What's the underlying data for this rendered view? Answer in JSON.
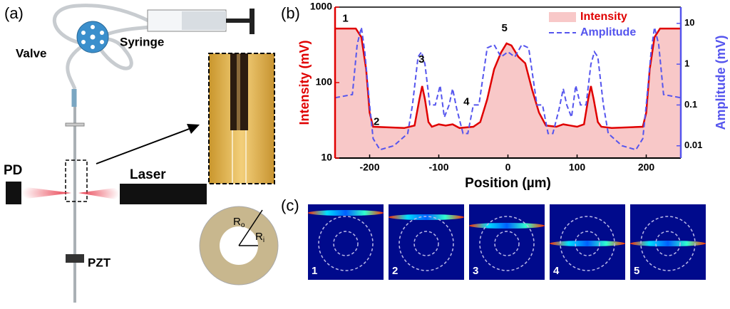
{
  "panel_a": {
    "label": "(a)",
    "valve": "Valve",
    "syringe": "Syringe",
    "pd": "PD",
    "laser": "Laser",
    "pzt": "PZT",
    "radius_labels": [
      {
        "main": "R",
        "sub": "o"
      },
      {
        "main": "R",
        "sub": "i"
      }
    ]
  },
  "chart_data": {
    "type": "line",
    "panel_label": "(b)",
    "xlabel": "Position (µm)",
    "ylabel": "Intensity (mV)",
    "y2label": "Amplitude (mV)",
    "xlim": [
      -250,
      250
    ],
    "xticks": [
      -200,
      -100,
      0,
      100,
      200
    ],
    "ylim": [
      10,
      1000
    ],
    "yticks": [
      10,
      100,
      1000
    ],
    "y2lim": [
      0.005,
      25
    ],
    "y2ticks": [
      0.01,
      0.1,
      1,
      10
    ],
    "yscale": "log",
    "y2scale": "log",
    "legend": "upper right",
    "series": [
      {
        "name": "Intensity",
        "color": "#e00000",
        "fill": "#f8c8c8",
        "style": "area",
        "x": [
          -250,
          -220,
          -212,
          -205,
          -200,
          -195,
          -150,
          -135,
          -128,
          -124,
          -120,
          -115,
          -110,
          -100,
          -90,
          -80,
          -70,
          -50,
          -40,
          -30,
          -20,
          -10,
          -2,
          5,
          15,
          25,
          35,
          45,
          55,
          70,
          80,
          90,
          100,
          110,
          116,
          120,
          124,
          130,
          135,
          150,
          195,
          200,
          205,
          212,
          220,
          250
        ],
        "values": [
          520,
          520,
          400,
          150,
          40,
          26,
          25,
          27,
          60,
          90,
          60,
          30,
          26,
          28,
          27,
          28,
          25,
          26,
          30,
          60,
          150,
          250,
          330,
          310,
          220,
          180,
          80,
          40,
          27,
          26,
          28,
          27,
          26,
          28,
          60,
          90,
          60,
          30,
          26,
          25,
          26,
          40,
          150,
          400,
          520,
          520
        ]
      },
      {
        "name": "Amplitude",
        "color": "#5555ee",
        "style": "dashed",
        "axis": "y2",
        "x": [
          -250,
          -225,
          -218,
          -212,
          -207,
          -200,
          -195,
          -185,
          -165,
          -145,
          -138,
          -130,
          -125,
          -120,
          -113,
          -105,
          -98,
          -92,
          -85,
          -80,
          -74,
          -65,
          -58,
          -50,
          -42,
          -36,
          -30,
          -20,
          -10,
          0,
          10,
          20,
          30,
          36,
          42,
          50,
          58,
          65,
          74,
          80,
          85,
          92,
          98,
          105,
          113,
          120,
          125,
          130,
          138,
          145,
          165,
          185,
          195,
          200,
          207,
          212,
          218,
          225,
          250
        ],
        "values": [
          0.15,
          0.18,
          3,
          8,
          2,
          0.1,
          0.015,
          0.008,
          0.01,
          0.02,
          0.1,
          1.5,
          2,
          1,
          0.1,
          0.1,
          0.3,
          0.05,
          0.1,
          0.25,
          0.08,
          0.02,
          0.02,
          0.1,
          0.1,
          0.5,
          2.5,
          3,
          1.5,
          2,
          1.5,
          3,
          2.5,
          0.5,
          0.1,
          0.1,
          0.02,
          0.02,
          0.08,
          0.25,
          0.1,
          0.05,
          0.3,
          0.1,
          0.1,
          1,
          2,
          1.5,
          0.1,
          0.02,
          0.01,
          0.008,
          0.015,
          0.1,
          2,
          8,
          3,
          0.18,
          0.15
        ]
      }
    ],
    "annotations": [
      {
        "text": "1",
        "x": -235,
        "y": 700
      },
      {
        "text": "2",
        "x": -190,
        "y": 30
      },
      {
        "text": "3",
        "x": -125,
        "y": 200
      },
      {
        "text": "4",
        "x": -60,
        "y": 55
      },
      {
        "text": "5",
        "x": -5,
        "y": 520
      }
    ]
  },
  "panel_c": {
    "label": "(c)",
    "images": [
      "1",
      "2",
      "3",
      "4",
      "5"
    ]
  }
}
